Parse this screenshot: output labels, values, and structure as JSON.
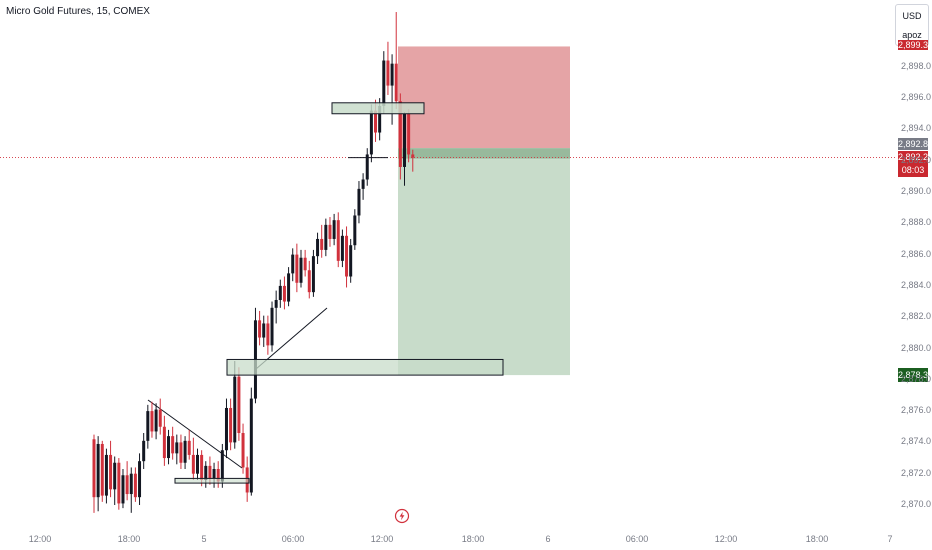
{
  "symbol": {
    "name": "Micro Gold Futures",
    "interval": "15",
    "exchange": "COMEX",
    "title": "Micro Gold Futures, 15, COMEX"
  },
  "currency": {
    "code": "USD",
    "unit": "apoz"
  },
  "price_labels": {
    "stop": "2,899.3",
    "entry": "2,892.8",
    "last_price": "2,892.2",
    "countdown": "08:03",
    "target": "2,878.3"
  },
  "chart_data": {
    "type": "candlestick",
    "ylim": [
      2869.5,
      2901.5
    ],
    "y_ticks": [
      2870.0,
      2872.0,
      2874.0,
      2876.0,
      2878.0,
      2880.0,
      2882.0,
      2884.0,
      2886.0,
      2888.0,
      2890.0,
      2892.0,
      2894.0,
      2896.0,
      2898.0
    ],
    "y_tick_labels": [
      "2,870.0",
      "2,872.0",
      "2,874.0",
      "2,876.0",
      "2,878.0",
      "2,880.0",
      "2,882.0",
      "2,884.0",
      "2,886.0",
      "2,888.0",
      "2,890.0",
      "2,892.0",
      "2,894.0",
      "2,896.0",
      "2,898.0"
    ],
    "x_tick_labels": [
      "12:00",
      "18:00",
      "5",
      "06:00",
      "12:00",
      "18:00",
      "6",
      "06:00",
      "12:00",
      "18:00",
      "7"
    ],
    "last_price": 2892.2,
    "position": {
      "side": "short",
      "entry": 2892.8,
      "stop": 2899.3,
      "target": 2878.3
    },
    "zones": [
      {
        "label": "",
        "from": 2895.0,
        "to": 2895.7
      },
      {
        "label": "",
        "from": 2878.3,
        "to": 2879.3
      },
      {
        "label": "",
        "from": 2871.4,
        "to": 2871.7
      }
    ],
    "candles": [
      [
        2874.2,
        2874.5,
        2869.5,
        2870.5
      ],
      [
        2870.5,
        2874.4,
        2869.6,
        2873.9
      ],
      [
        2873.9,
        2874.1,
        2870.2,
        2870.6
      ],
      [
        2870.6,
        2873.6,
        2870.1,
        2873.2
      ],
      [
        2873.2,
        2874.1,
        2870.5,
        2871.0
      ],
      [
        2871.0,
        2873.1,
        2870.0,
        2872.7
      ],
      [
        2872.7,
        2873.0,
        2869.7,
        2870.1
      ],
      [
        2870.1,
        2872.3,
        2869.8,
        2871.9
      ],
      [
        2871.9,
        2872.8,
        2870.3,
        2870.7
      ],
      [
        2870.7,
        2872.4,
        2869.5,
        2872.0
      ],
      [
        2872.0,
        2872.4,
        2870.2,
        2870.5
      ],
      [
        2870.5,
        2873.3,
        2870.0,
        2872.8
      ],
      [
        2872.8,
        2874.6,
        2872.3,
        2874.1
      ],
      [
        2874.1,
        2876.4,
        2873.6,
        2876.0
      ],
      [
        2876.0,
        2876.6,
        2874.3,
        2874.7
      ],
      [
        2874.7,
        2876.5,
        2874.2,
        2876.1
      ],
      [
        2876.1,
        2876.8,
        2874.5,
        2875.0
      ],
      [
        2875.0,
        2875.7,
        2872.5,
        2873.0
      ],
      [
        2873.0,
        2874.8,
        2872.6,
        2874.4
      ],
      [
        2874.4,
        2875.0,
        2872.9,
        2873.3
      ],
      [
        2873.3,
        2874.5,
        2872.6,
        2874.0
      ],
      [
        2874.0,
        2874.5,
        2872.3,
        2872.7
      ],
      [
        2872.7,
        2874.4,
        2872.3,
        2874.1
      ],
      [
        2874.1,
        2874.8,
        2872.9,
        2873.2
      ],
      [
        2873.2,
        2874.3,
        2871.6,
        2872.0
      ],
      [
        2872.0,
        2873.6,
        2871.6,
        2873.2
      ],
      [
        2873.2,
        2873.5,
        2871.2,
        2871.6
      ],
      [
        2871.6,
        2872.8,
        2871.1,
        2872.5
      ],
      [
        2872.5,
        2873.1,
        2871.3,
        2871.7
      ],
      [
        2871.7,
        2872.7,
        2871.1,
        2872.3
      ],
      [
        2872.3,
        2872.8,
        2871.1,
        2871.5
      ],
      [
        2871.5,
        2873.9,
        2871.1,
        2873.5
      ],
      [
        2873.5,
        2876.8,
        2873.0,
        2876.2
      ],
      [
        2876.2,
        2876.8,
        2873.5,
        2874.0
      ],
      [
        2874.0,
        2879.2,
        2873.6,
        2878.2
      ],
      [
        2878.2,
        2878.8,
        2874.1,
        2874.6
      ],
      [
        2874.6,
        2875.2,
        2872.0,
        2872.4
      ],
      [
        2872.4,
        2873.1,
        2870.2,
        2870.8
      ],
      [
        2870.8,
        2877.5,
        2870.6,
        2876.8
      ],
      [
        2876.8,
        2882.6,
        2876.5,
        2881.8
      ],
      [
        2881.8,
        2882.4,
        2880.2,
        2880.7
      ],
      [
        2880.7,
        2882.1,
        2880.1,
        2881.6
      ],
      [
        2881.6,
        2882.1,
        2879.6,
        2880.2
      ],
      [
        2880.2,
        2883.0,
        2879.8,
        2882.6
      ],
      [
        2882.6,
        2883.7,
        2881.6,
        2883.1
      ],
      [
        2883.1,
        2884.4,
        2882.6,
        2884.0
      ],
      [
        2884.0,
        2884.6,
        2882.5,
        2883.0
      ],
      [
        2883.0,
        2885.2,
        2882.7,
        2884.8
      ],
      [
        2884.8,
        2886.4,
        2884.3,
        2886.0
      ],
      [
        2886.0,
        2886.7,
        2883.6,
        2884.2
      ],
      [
        2884.2,
        2886.3,
        2883.9,
        2885.8
      ],
      [
        2885.8,
        2886.3,
        2884.6,
        2885.0
      ],
      [
        2885.0,
        2885.6,
        2883.2,
        2883.6
      ],
      [
        2883.6,
        2886.3,
        2883.3,
        2885.9
      ],
      [
        2885.9,
        2887.4,
        2885.4,
        2887.0
      ],
      [
        2887.0,
        2887.9,
        2885.8,
        2886.3
      ],
      [
        2886.3,
        2888.3,
        2885.9,
        2887.9
      ],
      [
        2887.9,
        2888.4,
        2886.5,
        2887.0
      ],
      [
        2887.0,
        2888.6,
        2886.6,
        2888.2
      ],
      [
        2888.2,
        2888.7,
        2885.2,
        2885.6
      ],
      [
        2885.6,
        2887.6,
        2885.2,
        2887.2
      ],
      [
        2887.2,
        2887.8,
        2883.9,
        2884.6
      ],
      [
        2884.6,
        2887.0,
        2884.2,
        2886.6
      ],
      [
        2886.6,
        2888.9,
        2886.3,
        2888.5
      ],
      [
        2888.5,
        2890.7,
        2888.0,
        2890.2
      ],
      [
        2890.2,
        2891.2,
        2889.5,
        2890.8
      ],
      [
        2890.8,
        2892.8,
        2890.4,
        2892.4
      ],
      [
        2892.4,
        2895.6,
        2891.9,
        2895.2
      ],
      [
        2895.2,
        2895.9,
        2893.2,
        2893.8
      ],
      [
        2893.8,
        2896.0,
        2893.3,
        2895.5
      ],
      [
        2895.5,
        2899.0,
        2895.0,
        2898.4
      ],
      [
        2898.4,
        2899.6,
        2896.2,
        2896.8
      ],
      [
        2896.8,
        2898.8,
        2894.3,
        2898.2
      ],
      [
        2898.2,
        2901.5,
        2895.3,
        2895.8
      ],
      [
        2895.8,
        2896.3,
        2890.8,
        2891.6
      ],
      [
        2891.6,
        2895.1,
        2890.4,
        2895.0
      ],
      [
        2895.0,
        2895.3,
        2891.9,
        2892.4
      ],
      [
        2892.4,
        2892.7,
        2891.3,
        2892.2
      ]
    ]
  },
  "colors": {
    "up": "#131722",
    "down": "#d1313c",
    "stop_zone": "#e5a4a6",
    "target_zone": "#c8dcca",
    "entry_band": "#98b99c",
    "supply_zone": "#c8dcca",
    "last_price_line": "#d1313c"
  },
  "icons": {
    "replay": "lightning-bolt-icon"
  }
}
